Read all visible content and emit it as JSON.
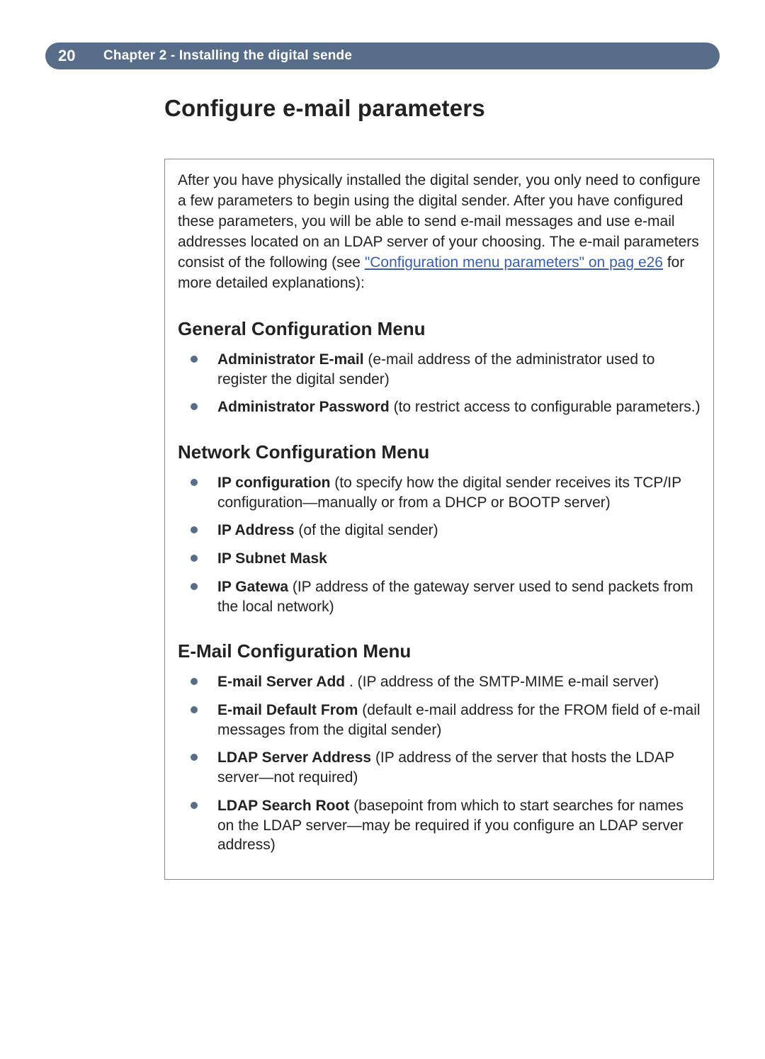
{
  "colors": {
    "header_bg": "#576d8a",
    "header_text": "#ffffff",
    "body_text": "#222222",
    "link": "#3a5fa8",
    "bullet": "#576d8a",
    "box_border": "#888888",
    "page_bg": "#ffffff"
  },
  "typography": {
    "title_fontsize_pt": 25,
    "section_fontsize_pt": 20,
    "body_fontsize_pt": 16,
    "header_fontsize_pt": 15,
    "title_weight": 700,
    "section_weight": 700,
    "body_family": "Arial Narrow / Helvetica Condensed",
    "heading_family": "Arial / Helvetica"
  },
  "header": {
    "page_number": "20",
    "chapter_label": "Chapter 2 - Installing the digital sende"
  },
  "title": "Configure e-mail parameters",
  "intro": {
    "pre_link": "After you have physically installed the digital sender, you only need to configure a few parameters to begin using the digital sender. After you have configured these parameters, you will be able to send e-mail messages and use e-mail addresses located on an LDAP server of your choosing. The e-mail parameters consist of the following (see ",
    "link_text": "\"Configuration menu parameters\" on pag e26",
    "post_link": " for more detailed explanations):"
  },
  "sections": [
    {
      "heading": "General Configuration Menu",
      "items": [
        {
          "term": "Administrator E-mail",
          "desc": " (e-mail address of the administrator used to register the digital sender)"
        },
        {
          "term": "Administrator Password",
          "desc": " (to restrict access to configurable parameters.)"
        }
      ]
    },
    {
      "heading": "Network Configuration Menu",
      "items": [
        {
          "term": "IP configuration",
          "desc": " (to specify how the digital sender receives its TCP/IP configuration—manually or from a DHCP or BOOTP server)"
        },
        {
          "term": "IP Address",
          "desc": " (of the digital sender)"
        },
        {
          "term": "IP Subnet Mask",
          "desc": ""
        },
        {
          "term": "IP Gatewa",
          "desc": "  (IP address of the gateway server used to send packets from the local network)"
        }
      ]
    },
    {
      "heading": "E-Mail Configuration Menu",
      "items": [
        {
          "term": "E-mail Server Add",
          "desc": " . (IP address of the SMTP-MIME e-mail server)"
        },
        {
          "term": "E-mail Default From",
          "desc": " (default e-mail address for the FROM field of e-mail messages from the digital sender)"
        },
        {
          "term": "LDAP Server Address",
          "desc": " (IP address of the server that hosts the LDAP server—not required)"
        },
        {
          "term": "LDAP Search Root",
          "desc": " (basepoint from which to start searches for names on the LDAP server—may be required if you configure an LDAP server address)"
        }
      ]
    }
  ]
}
